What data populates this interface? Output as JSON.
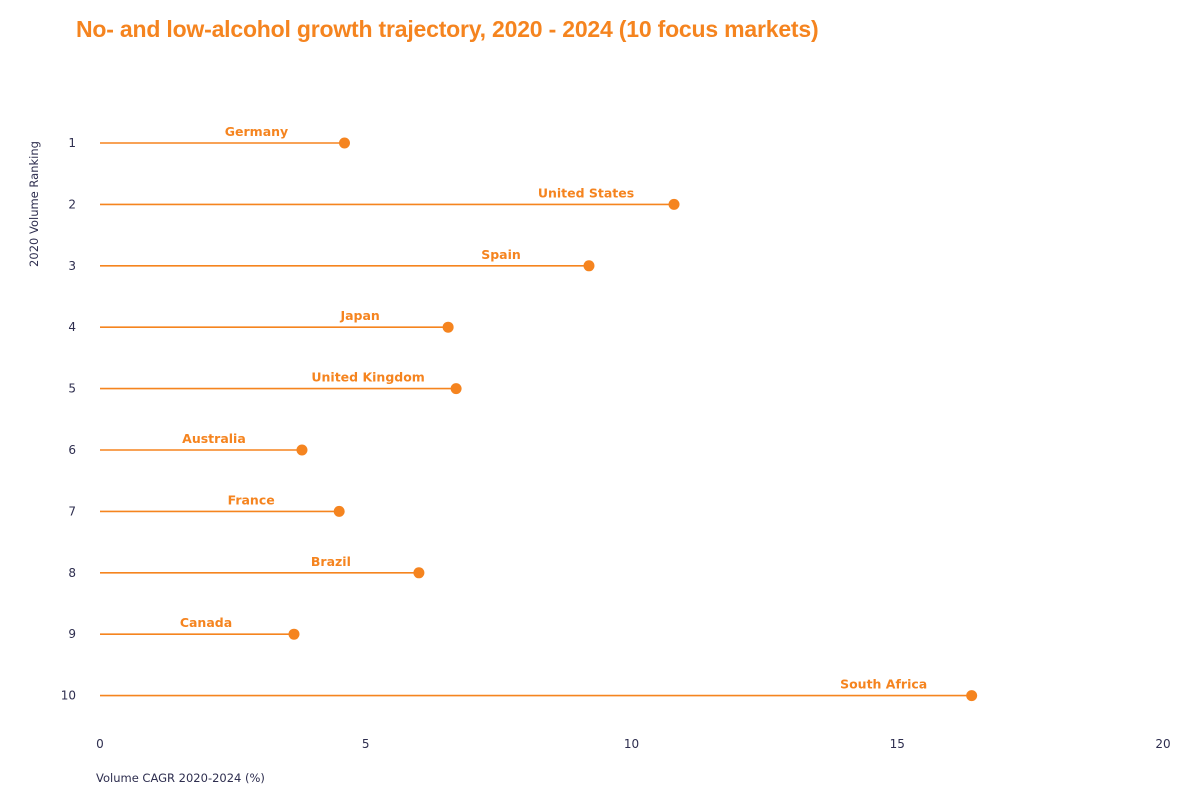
{
  "chart_data": {
    "type": "lollipop",
    "title": "No- and low-alcohol growth trajectory, 2020 - 2024 (10 focus markets)",
    "xlabel": "Volume CAGR 2020-2024 (%)",
    "ylabel": "2020 Volume Ranking",
    "xlim": [
      0,
      20
    ],
    "xticks": [
      "0",
      "5",
      "10",
      "15",
      "20"
    ],
    "xtick_values": [
      0,
      5,
      10,
      15,
      20
    ],
    "ylim": [
      1,
      10
    ],
    "grid": false,
    "legend": "none",
    "color": "#F5841F",
    "tick_color": "#2E2E4F",
    "points": [
      {
        "rank": 1,
        "rank_label": "1",
        "market": "Germany",
        "cagr": 4.6
      },
      {
        "rank": 2,
        "rank_label": "2",
        "market": "United States",
        "cagr": 10.8
      },
      {
        "rank": 3,
        "rank_label": "3",
        "market": "Spain",
        "cagr": 9.2
      },
      {
        "rank": 4,
        "rank_label": "4",
        "market": "Japan",
        "cagr": 6.55
      },
      {
        "rank": 5,
        "rank_label": "5",
        "market": "United Kingdom",
        "cagr": 6.7
      },
      {
        "rank": 6,
        "rank_label": "6",
        "market": "Australia",
        "cagr": 3.8
      },
      {
        "rank": 7,
        "rank_label": "7",
        "market": "France",
        "cagr": 4.5
      },
      {
        "rank": 8,
        "rank_label": "8",
        "market": "Brazil",
        "cagr": 6.0
      },
      {
        "rank": 9,
        "rank_label": "9",
        "market": "Canada",
        "cagr": 3.65
      },
      {
        "rank": 10,
        "rank_label": "10",
        "market": "South Africa",
        "cagr": 16.4
      }
    ]
  }
}
